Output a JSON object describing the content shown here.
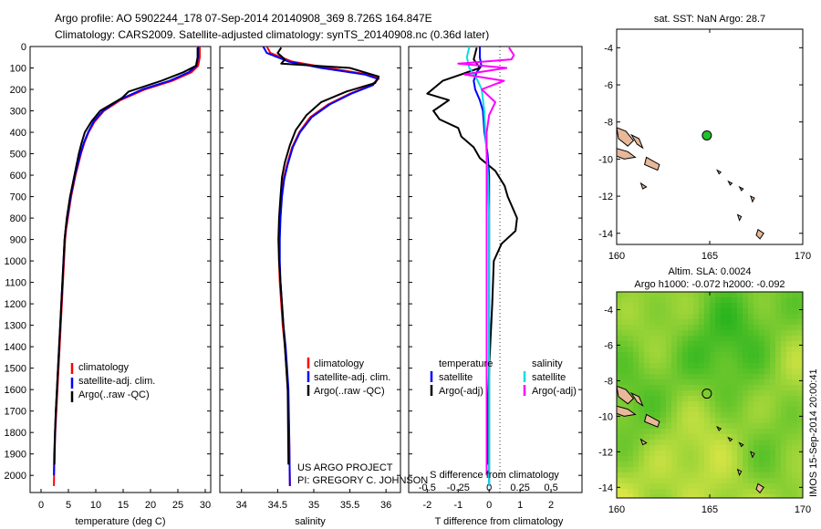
{
  "header": {
    "line1": "Argo profile: AO 5902244_178 07-Sep-2014 20140908_369 8.726S 164.847E",
    "line2": "Climatology: CARS2009. Satellite-adjusted climatology: synTS_20140908.nc (0.36d later)"
  },
  "colors": {
    "climatology": "#ff0000",
    "satellite": "#0000ff",
    "argo": "#000000",
    "sat_temperature": "#0000ff",
    "sat_salinity": "#00e0e0",
    "argo_salinity": "#ff00ff",
    "land": "#e8b89a",
    "argo_marker": "#22c02a"
  },
  "chart_data": [
    {
      "id": "temperature",
      "type": "line",
      "xlabel": "temperature (deg C)",
      "ylabel": "",
      "xlim": [
        -2,
        31
      ],
      "ylim": [
        2080,
        0
      ],
      "x_ticks": [
        0,
        5,
        10,
        15,
        20,
        25,
        30
      ],
      "y_ticks": [
        0,
        100,
        200,
        300,
        400,
        500,
        600,
        700,
        800,
        900,
        1000,
        1100,
        1200,
        1300,
        1400,
        1500,
        1600,
        1700,
        1800,
        1900,
        2000
      ],
      "legend": [
        "climatology",
        "satellite-adj. clim.",
        "Argo(..raw -QC)"
      ],
      "series": [
        {
          "name": "climatology",
          "color": "#ff0000",
          "x": [
            29.0,
            29.0,
            28.7,
            27.5,
            24.0,
            19.0,
            14.5,
            11.5,
            9.8,
            8.7,
            7.9,
            7.3,
            6.8,
            6.3,
            5.9,
            5.5,
            5.2,
            4.9,
            4.6,
            4.4,
            4.2,
            4.0,
            3.8,
            3.6,
            3.4,
            3.2,
            3.0,
            2.8,
            2.6,
            2.45,
            2.35
          ],
          "y": [
            0,
            50,
            90,
            120,
            160,
            200,
            250,
            300,
            350,
            400,
            450,
            500,
            550,
            600,
            650,
            700,
            750,
            800,
            850,
            900,
            1000,
            1100,
            1200,
            1300,
            1400,
            1500,
            1600,
            1700,
            1800,
            1900,
            2050
          ]
        },
        {
          "name": "satellite-adj. clim.",
          "color": "#0000ff",
          "x": [
            28.7,
            28.7,
            28.4,
            27.0,
            23.5,
            18.5,
            14.2,
            11.3,
            9.6,
            8.6,
            7.8,
            7.2,
            6.7,
            6.2,
            5.8,
            5.4,
            5.1,
            4.8,
            4.5,
            4.3,
            4.1,
            3.9,
            3.7,
            3.5,
            3.3,
            3.1,
            2.9,
            2.7,
            2.55,
            2.4,
            2.35
          ],
          "y": [
            0,
            50,
            90,
            120,
            160,
            200,
            250,
            300,
            350,
            400,
            450,
            500,
            550,
            600,
            650,
            700,
            750,
            800,
            850,
            900,
            1000,
            1100,
            1200,
            1300,
            1400,
            1500,
            1600,
            1700,
            1800,
            1900,
            2000
          ]
        },
        {
          "name": "Argo(..raw -QC)",
          "color": "#000000",
          "x": [
            28.6,
            28.6,
            28.3,
            26.0,
            22.0,
            16.0,
            14.8,
            10.8,
            9.2,
            8.0,
            7.4,
            6.9,
            6.5,
            6.1,
            5.7,
            5.3,
            5.0,
            4.7,
            4.5,
            4.3,
            4.1,
            3.9,
            3.7,
            3.5,
            3.3,
            3.1,
            2.9,
            2.7,
            2.55,
            2.45
          ],
          "y": [
            5,
            50,
            90,
            120,
            160,
            210,
            240,
            300,
            350,
            400,
            450,
            500,
            550,
            600,
            650,
            700,
            750,
            800,
            850,
            900,
            1000,
            1100,
            1200,
            1300,
            1400,
            1500,
            1600,
            1700,
            1800,
            1950
          ]
        }
      ]
    },
    {
      "id": "salinity",
      "type": "line",
      "xlabel": "salinity",
      "xlim": [
        33.7,
        36.2
      ],
      "ylim": [
        2080,
        0
      ],
      "x_ticks": [
        34,
        34.5,
        35,
        35.5,
        36
      ],
      "x_tick_labels": [
        "34",
        "34.5",
        "35",
        "35.5",
        "36"
      ],
      "legend": [
        "climatology",
        "satellite-adj. clim.",
        "Argo(..raw -QC)"
      ],
      "annotation_lines": [
        "US ARGO PROJECT",
        "PI: GREGORY C. JOHNSON"
      ],
      "series": [
        {
          "name": "climatology",
          "color": "#ff0000",
          "x": [
            34.35,
            34.4,
            34.7,
            35.2,
            35.75,
            35.9,
            35.8,
            35.5,
            35.2,
            34.95,
            34.8,
            34.7,
            34.63,
            34.58,
            34.55,
            34.53,
            34.52,
            34.52,
            34.53,
            34.55,
            34.57,
            34.6,
            34.62,
            34.64,
            34.66,
            34.67
          ],
          "y": [
            0,
            30,
            70,
            100,
            130,
            150,
            180,
            220,
            270,
            330,
            400,
            470,
            550,
            620,
            700,
            800,
            900,
            1000,
            1100,
            1200,
            1300,
            1400,
            1500,
            1600,
            1800,
            2050
          ]
        },
        {
          "name": "satellite-adj. clim.",
          "color": "#0000ff",
          "x": [
            34.3,
            34.35,
            34.65,
            35.1,
            35.7,
            35.88,
            35.82,
            35.52,
            35.22,
            34.97,
            34.81,
            34.71,
            34.64,
            34.59,
            34.56,
            34.54,
            34.53,
            34.53,
            34.54,
            34.56,
            34.58,
            34.61,
            34.63,
            34.65,
            34.66,
            34.67
          ],
          "y": [
            0,
            30,
            70,
            100,
            130,
            150,
            180,
            220,
            270,
            330,
            400,
            470,
            550,
            620,
            700,
            800,
            900,
            1000,
            1100,
            1200,
            1300,
            1400,
            1500,
            1600,
            1800,
            2050
          ]
        },
        {
          "name": "Argo(..raw -QC)",
          "color": "#000000",
          "x": [
            34.55,
            34.5,
            34.6,
            34.55,
            35.5,
            35.9,
            35.85,
            35.45,
            35.1,
            34.9,
            34.75,
            34.67,
            34.6,
            34.56,
            34.54,
            34.52,
            34.51,
            34.52,
            34.54,
            34.56,
            34.58,
            34.6,
            34.62,
            34.64,
            34.65
          ],
          "y": [
            5,
            30,
            60,
            80,
            100,
            140,
            170,
            210,
            260,
            320,
            390,
            460,
            540,
            610,
            700,
            800,
            900,
            1000,
            1100,
            1200,
            1300,
            1400,
            1500,
            1600,
            1950
          ]
        }
      ]
    },
    {
      "id": "difference",
      "type": "line",
      "xlabel": "T difference from climatology",
      "top_axis_label": "S difference from climatology",
      "xlim": [
        -2.6,
        3.0
      ],
      "ylim": [
        2080,
        0
      ],
      "x_ticks": [
        -2,
        -1,
        0,
        1,
        2
      ],
      "x_tick_labels": [
        "-2",
        "-1",
        "0",
        "1",
        "2"
      ],
      "s_ticks": [
        -0.5,
        -0.25,
        0,
        0.25,
        0.5
      ],
      "s_tick_labels": [
        "-0.5",
        "-0.25",
        "0",
        "0.25",
        "0.5"
      ],
      "s_scale": 4,
      "legend_temperature": {
        "heading": "temperature",
        "items": [
          "satellite",
          "Argo(-adj)"
        ]
      },
      "legend_salinity": {
        "heading": "salinity",
        "items": [
          "satellite",
          "Argo(-adj)"
        ]
      },
      "series": [
        {
          "name": "temperature satellite",
          "color": "#0000ff",
          "x": [
            -0.3,
            -0.3,
            -0.25,
            -0.4,
            -0.5,
            -0.45,
            -0.3,
            -0.2,
            -0.15,
            -0.1,
            -0.05,
            0.0,
            0.0,
            0.0,
            0.0,
            0.0
          ],
          "y": [
            0,
            50,
            90,
            120,
            160,
            200,
            250,
            300,
            400,
            450,
            500,
            600,
            800,
            1200,
            1600,
            2050
          ]
        },
        {
          "name": "temperature Argo(-adj)",
          "color": "#000000",
          "x": [
            -0.4,
            -0.5,
            -0.3,
            -1.5,
            -2.0,
            -1.3,
            -1.8,
            -1.6,
            -1.0,
            -0.9,
            -0.5,
            -0.3,
            0.2,
            0.5,
            0.6,
            0.75,
            0.9,
            0.85,
            0.4,
            0.15,
            0.1,
            0.0,
            -0.05,
            -0.05
          ],
          "y": [
            5,
            60,
            100,
            160,
            220,
            250,
            300,
            340,
            380,
            420,
            470,
            520,
            580,
            650,
            700,
            750,
            800,
            860,
            920,
            1000,
            1200,
            1500,
            1800,
            1950
          ]
        },
        {
          "name": "salinity satellite",
          "color": "#00e0e0",
          "x": [
            -0.16,
            -0.18,
            -0.16,
            -0.1,
            -0.06,
            -0.04,
            -0.03,
            -0.02,
            -0.01,
            0.0,
            0.0,
            0.0
          ],
          "y": [
            0,
            50,
            100,
            150,
            200,
            300,
            400,
            500,
            600,
            800,
            1400,
            2050
          ]
        },
        {
          "name": "salinity Argo(-adj)",
          "color": "#ff00ff",
          "x": [
            0.16,
            0.2,
            0.18,
            -0.25,
            0.14,
            -0.2,
            0.12,
            -0.06,
            0.05,
            0.0,
            -0.02,
            -0.02,
            -0.02,
            -0.02
          ],
          "y": [
            5,
            40,
            60,
            80,
            100,
            130,
            160,
            200,
            260,
            320,
            400,
            500,
            1000,
            2000
          ]
        }
      ]
    },
    {
      "id": "sst_map",
      "type": "scatter",
      "title": "sat. SST: NaN Argo: 28.7",
      "xlim": [
        160,
        170
      ],
      "ylim": [
        -14.6,
        -3
      ],
      "x_ticks": [
        160,
        165,
        170
      ],
      "y_ticks": [
        -4,
        -6,
        -8,
        -10,
        -12,
        -14
      ],
      "argo_position": {
        "lon": 164.847,
        "lat": -8.726
      }
    },
    {
      "id": "sla_map",
      "type": "heatmap",
      "title": "Altim. SLA: 0.0024",
      "subtitle": "Argo h1000: -0.072 h2000: -0.092",
      "xlim": [
        160,
        170
      ],
      "ylim": [
        -14.6,
        -3
      ],
      "x_ticks": [
        160,
        165,
        170
      ],
      "y_ticks": [
        -4,
        -6,
        -8,
        -10,
        -12,
        -14
      ],
      "argo_position": {
        "lon": 164.847,
        "lat": -8.726
      }
    }
  ],
  "side_label": "IMOS 15-Sep-2014 20:00:41"
}
